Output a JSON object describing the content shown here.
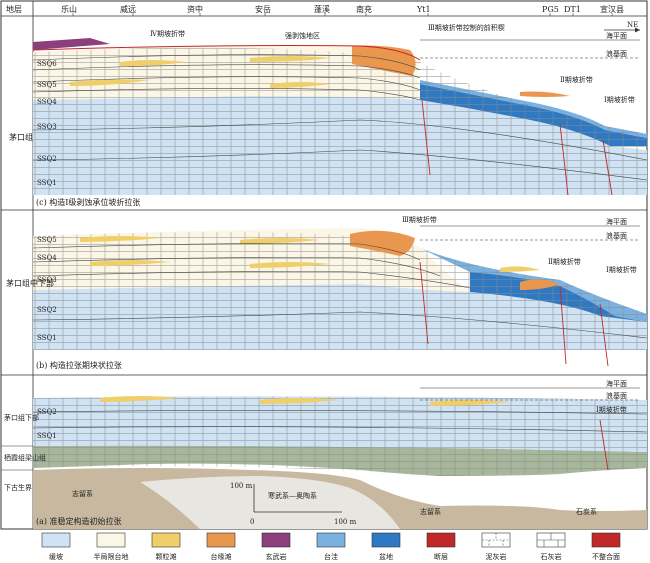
{
  "header": {
    "strata_col": "地层",
    "localities": [
      "乐山",
      "威远",
      "资中",
      "安岳",
      "蓬溪",
      "南充",
      "Yt1",
      "PG5",
      "DT1",
      "宣汉县"
    ],
    "direction": "NE"
  },
  "panels": [
    {
      "caption": "(c) 构造Ⅰ级剥蚀承位坡折拉张",
      "strata": "茅口组",
      "sequences": [
        "SSQ6",
        "SSQ5",
        "SSQ4",
        "SSQ3",
        "SSQ2",
        "SSQ1"
      ],
      "sea_labels": [
        "海平面",
        "浪基面"
      ],
      "annotations": [
        "Ⅳ期坡折带",
        "强剥蚀地区",
        "Ⅲ期坡折带控制的前积楔",
        "Ⅱ期坡折带",
        "Ⅰ期坡折带"
      ]
    },
    {
      "caption": "(b) 构造拉张期块状拉张",
      "strata": "茅口组中下部",
      "sequences": [
        "SSQ5",
        "SSQ4",
        "SSQ3",
        "SSQ2",
        "SSQ1"
      ],
      "sea_labels": [
        "海平面",
        "浪基面"
      ],
      "annotations": [
        "Ⅲ期坡折带",
        "Ⅱ期坡折带",
        "Ⅰ期坡折带"
      ]
    },
    {
      "caption": "(a) 准稳定构造初始拉张",
      "strata_upper": "茅口组下部",
      "strata_mid": "栖霞组梁山组",
      "strata_lower": "下古生界",
      "sequences": [
        "SSQ2",
        "SSQ1"
      ],
      "sea_labels": [
        "海平面",
        "浪基面"
      ],
      "annotations": [
        "Ⅰ期坡折带",
        "志留系",
        "寒武系—奥陶系",
        "石炭系",
        "志留系"
      ],
      "scale": {
        "vertical": "100 m",
        "horizontal_start": "0",
        "horizontal_end": "100 m"
      }
    }
  ],
  "legend": [
    {
      "label": "缓坡",
      "color": "#cfe3f4",
      "icon": "swatch"
    },
    {
      "label": "半局限台地",
      "color": "#fbf6e6",
      "icon": "swatch"
    },
    {
      "label": "颗粒滩",
      "color": "#f0cf6a",
      "icon": "swatch"
    },
    {
      "label": "台缘滩",
      "color": "#e9964f",
      "icon": "swatch"
    },
    {
      "label": "玄武岩",
      "color": "#8b3f7d",
      "icon": "swatch"
    },
    {
      "label": "台洼",
      "color": "#7bb1e0",
      "icon": "swatch"
    },
    {
      "label": "盆地",
      "color": "#2f79c2",
      "icon": "swatch"
    },
    {
      "label": "断层",
      "color": "#c0282a",
      "icon": "fault-icon"
    },
    {
      "label": "泥灰岩",
      "color": "#ffffff",
      "icon": "marl-icon"
    },
    {
      "label": "石灰岩",
      "color": "#ffffff",
      "icon": "limestone-icon"
    },
    {
      "label": "不整合面",
      "color": "#c0282a",
      "icon": "unconformity-icon"
    }
  ]
}
